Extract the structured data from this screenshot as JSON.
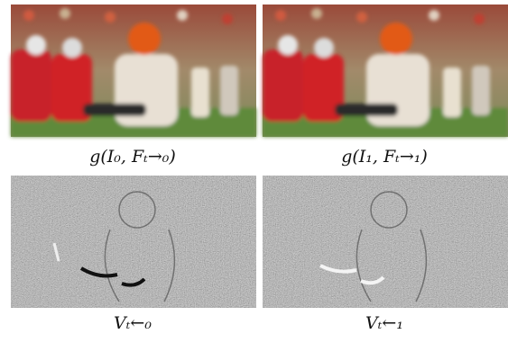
{
  "figure": {
    "panels": [
      {
        "caption": "g(I₀, Fₜ→₀)"
      },
      {
        "caption": "g(I₁, Fₜ→₁)"
      },
      {
        "caption": "Vₜ←₀"
      },
      {
        "caption": "Vₜ←₁"
      }
    ]
  }
}
